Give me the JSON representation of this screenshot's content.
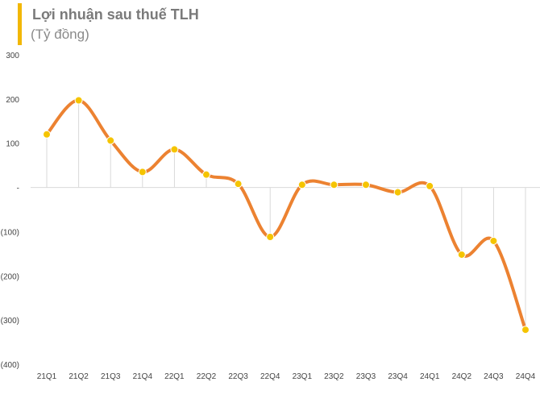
{
  "header": {
    "title": "Lợi nhuận sau thuế TLH",
    "subtitle": "(Tỷ đồng)"
  },
  "colors": {
    "accent_bar": "#f2b705",
    "line": "#ec8231",
    "marker": "#f5c400",
    "drop_line": "#d9d9d9",
    "zero_line": "#d9d9d9"
  },
  "chart_data": {
    "type": "line",
    "title": "Lợi nhuận sau thuế TLH",
    "subtitle": "(Tỷ đồng)",
    "xlabel": "",
    "ylabel": "",
    "categories": [
      "21Q1",
      "21Q2",
      "21Q3",
      "21Q4",
      "22Q1",
      "22Q2",
      "22Q3",
      "22Q4",
      "23Q1",
      "23Q2",
      "23Q3",
      "23Q4",
      "24Q1",
      "24Q2",
      "24Q3",
      "24Q4"
    ],
    "series": [
      {
        "values": [
          120,
          197,
          106,
          35,
          86,
          29,
          8,
          -112,
          6,
          6,
          6,
          -11,
          3,
          -152,
          -121,
          -322
        ]
      }
    ],
    "ylim": [
      -400,
      300
    ],
    "yticks": [
      300,
      200,
      100,
      0,
      -100,
      -200,
      -300,
      -400
    ],
    "ytick_labels": [
      "300",
      "200",
      "100",
      "-",
      "(100)",
      "(200)",
      "(300)",
      "(400)"
    ],
    "grid": false,
    "legend": "none",
    "smooth": true,
    "markers": true,
    "drop_lines": true
  }
}
